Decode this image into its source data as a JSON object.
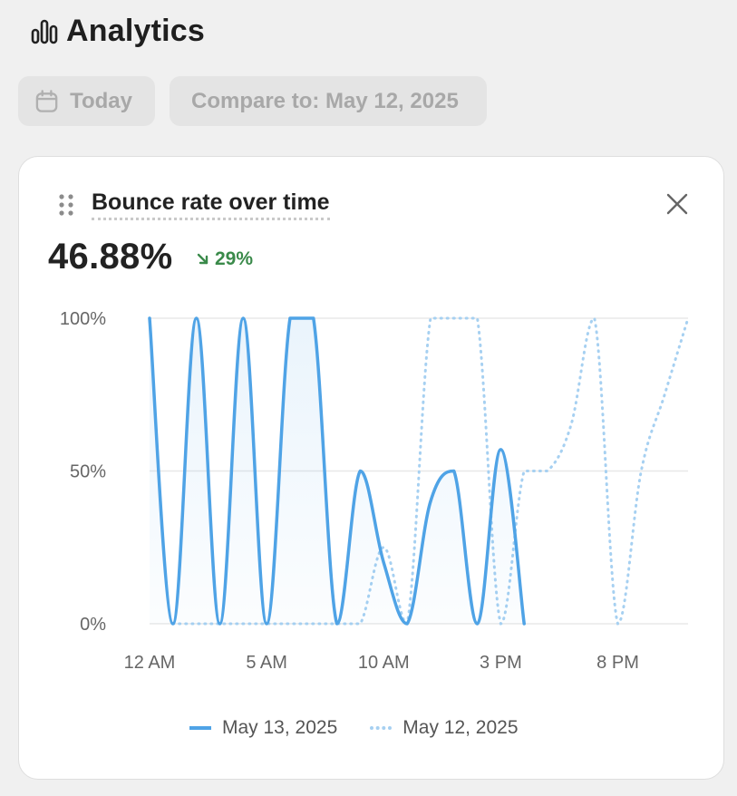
{
  "header": {
    "title": "Analytics",
    "icon": "bar-chart-icon"
  },
  "toolbar": {
    "date_label": "Today",
    "date_icon": "calendar-icon",
    "compare_label": "Compare to: May 12, 2025"
  },
  "card": {
    "title": "Bounce rate over time",
    "value": "46.88%",
    "delta": "29%",
    "delta_direction": "down",
    "delta_color": "#3a8a4a",
    "drag_icon": "drag-handle-icon",
    "close_icon": "close-icon"
  },
  "chart_data": {
    "type": "line",
    "y_ticks": [
      "100%",
      "50%",
      "0%"
    ],
    "x_ticks": [
      "12 AM",
      "5 AM",
      "10 AM",
      "3 PM",
      "8 PM"
    ],
    "ylim": [
      0,
      100
    ],
    "xlim": [
      0,
      23
    ],
    "grid": true,
    "legend_position": "bottom",
    "series": [
      {
        "name": "May 13, 2025",
        "style": "solid",
        "color": "#4fa3e6",
        "x": [
          0,
          1,
          2,
          3,
          4,
          5,
          6,
          7,
          8,
          9,
          10,
          11,
          12,
          13,
          14,
          15,
          16
        ],
        "y": [
          100,
          0,
          100,
          0,
          100,
          0,
          100,
          100,
          0,
          50,
          20,
          0,
          40,
          50,
          0,
          57,
          0
        ]
      },
      {
        "name": "May 12, 2025",
        "style": "dotted",
        "color": "#a6d0f1",
        "x": [
          0,
          1,
          2,
          3,
          4,
          5,
          6,
          7,
          8,
          9,
          10,
          11,
          12,
          13,
          14,
          15,
          16,
          17,
          18,
          19,
          20,
          21,
          22,
          23
        ],
        "y": [
          null,
          0,
          0,
          0,
          0,
          0,
          0,
          0,
          0,
          0,
          25,
          0,
          100,
          100,
          100,
          0,
          50,
          50,
          65,
          100,
          0,
          50,
          75,
          100
        ]
      }
    ]
  }
}
